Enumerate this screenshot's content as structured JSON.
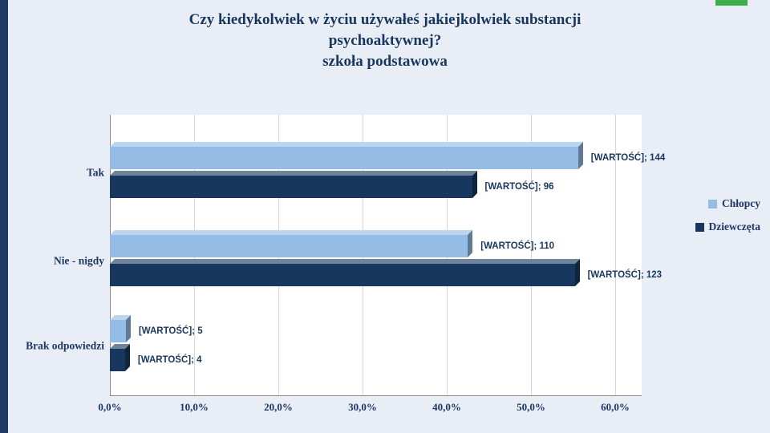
{
  "slide": {
    "title_lines": [
      "Czy kiedykolwiek w życiu używałeś jakiejkolwiek substancji",
      "psychoaktywnej?",
      "szkoła podstawowa"
    ]
  },
  "colors": {
    "background": "#E9EDF6",
    "left_accent": "#1F3864",
    "top_accent_green": "#3FAE49",
    "series_boys": "#94BCE4",
    "series_girls": "#17375E",
    "text_navy": "#1F3864",
    "plot_background": "#FFFFFF"
  },
  "chart_data": {
    "type": "bar",
    "orientation": "horizontal",
    "title": "Czy kiedykolwiek w życiu używałeś jakiejkolwiek substancji psychoaktywnej? szkoła podstawowa",
    "categories": [
      "Tak",
      "Nie - nigdy",
      "Brak odpowiedzi"
    ],
    "series": [
      {
        "name": "Chłopcy",
        "color": "#94BCE4",
        "counts": [
          144,
          110,
          5
        ],
        "values_pct": [
          55.6,
          42.5,
          1.9
        ],
        "data_labels": [
          "[WARTOŚĆ]; 144",
          "[WARTOŚĆ]; 110",
          "[WARTOŚĆ]; 5"
        ]
      },
      {
        "name": "Dziewczęta",
        "color": "#17375E",
        "counts": [
          96,
          123,
          4
        ],
        "values_pct": [
          43.0,
          55.2,
          1.8
        ],
        "data_labels": [
          "[WARTOŚĆ]; 96",
          "[WARTOŚĆ]; 123",
          "[WARTOŚĆ]; 4"
        ]
      }
    ],
    "x_ticks": [
      "0,0%",
      "10,0%",
      "20,0%",
      "30,0%",
      "40,0%",
      "50,0%",
      "60,0%"
    ],
    "x_range": [
      0,
      60
    ],
    "grid": true,
    "legend_position": "right"
  }
}
